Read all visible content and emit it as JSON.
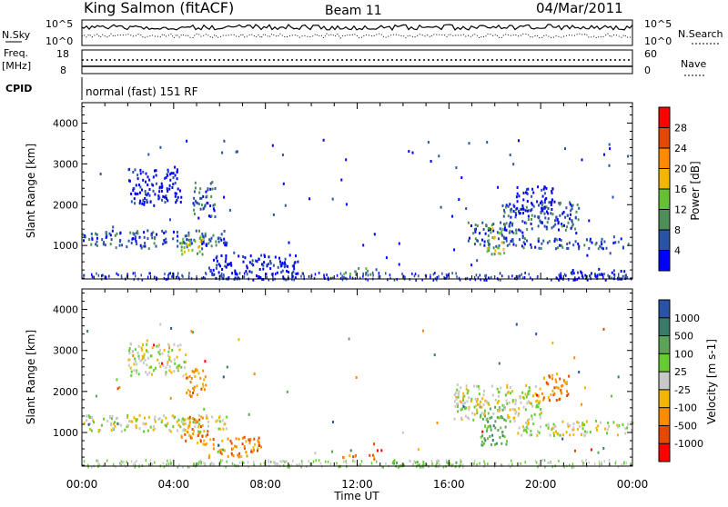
{
  "header": {
    "station": "King Salmon (fitACF)",
    "beam": "Beam 11",
    "date": "04/Mar/2011"
  },
  "top_panels": {
    "nsky_label": "N.Sky",
    "nsearch_label": "N.Search",
    "nsky_ticks": [
      "10^5",
      "10^0"
    ],
    "nsearch_ticks": [
      "10^5",
      "10^0"
    ],
    "freq_label_1": "Freq.",
    "freq_label_2": "[MHz]",
    "freq_ticks": [
      "18",
      "8"
    ],
    "nave_label": "Nave",
    "nave_ticks": [
      "60",
      "0"
    ],
    "cpid_label": "CPID",
    "cpid_text": "normal (fast) 151 RF"
  },
  "chart_data": [
    {
      "type": "heatmap",
      "name": "power",
      "ylabel": "Slant Range [km]",
      "xlabel": "",
      "y_ticks": [
        "4000",
        "3000",
        "2000",
        "1000"
      ],
      "x_ticks": [
        "00:00",
        "04:00",
        "08:00",
        "12:00",
        "16:00",
        "20:00",
        "00:00"
      ],
      "xlim": [
        0,
        24
      ],
      "ylim": [
        180,
        4500
      ],
      "colorbar_label": "Power [dB]",
      "colorbar_ticks": [
        "28",
        "24",
        "20",
        "16",
        "12",
        "8",
        "4"
      ],
      "colors": [
        "#ff0000",
        "#e34a00",
        "#ff8c00",
        "#f2b500",
        "#66c033",
        "#4e8f59",
        "#2a53a5",
        "#0000ff"
      ],
      "bands": [
        {
          "t": [
            1.0,
            6.3
          ],
          "r": [
            950,
            1400
          ],
          "level": 6
        },
        {
          "t": [
            0.0,
            1.3
          ],
          "r": [
            1000,
            1350
          ],
          "level": 6
        },
        {
          "t": [
            4.3,
            5.3
          ],
          "r": [
            800,
            1250
          ],
          "level": 4
        },
        {
          "t": [
            2.0,
            4.3
          ],
          "r": [
            2000,
            2900
          ],
          "level": 7
        },
        {
          "t": [
            4.8,
            5.8
          ],
          "r": [
            1700,
            2600
          ],
          "level": 6
        },
        {
          "t": [
            5.5,
            9.5
          ],
          "r": [
            180,
            800
          ],
          "level": 7
        },
        {
          "t": [
            11.3,
            12.8
          ],
          "r": [
            300,
            470
          ],
          "level": 5
        },
        {
          "t": [
            16.8,
            19.2
          ],
          "r": [
            1000,
            1600
          ],
          "level": 6
        },
        {
          "t": [
            17.6,
            18.4
          ],
          "r": [
            800,
            1450
          ],
          "level": 4
        },
        {
          "t": [
            18.3,
            21.7
          ],
          "r": [
            1400,
            2100
          ],
          "level": 6
        },
        {
          "t": [
            19.0,
            23.8
          ],
          "r": [
            950,
            1200
          ],
          "level": 6
        },
        {
          "t": [
            18.8,
            20.5
          ],
          "r": [
            1800,
            2500
          ],
          "level": 7
        },
        {
          "t": [
            20.5,
            23.8
          ],
          "r": [
            180,
            450
          ],
          "level": 7
        }
      ]
    },
    {
      "type": "heatmap",
      "name": "velocity",
      "ylabel": "Slant Range [km]",
      "xlabel": "Time UT",
      "y_ticks": [
        "4000",
        "3000",
        "2000",
        "1000"
      ],
      "x_ticks": [
        "00:00",
        "04:00",
        "08:00",
        "12:00",
        "16:00",
        "20:00",
        "00:00"
      ],
      "xlim": [
        0,
        24
      ],
      "ylim": [
        180,
        4500
      ],
      "colorbar_label": "Velocity [m s-1]",
      "colorbar_ticks": [
        "1000",
        "500",
        "100",
        "25",
        "-25",
        "-100",
        "-500",
        "-1000"
      ],
      "colors": [
        "#2a53a5",
        "#3a7a6a",
        "#5aa35a",
        "#66cc33",
        "#c8c8c8",
        "#f2b500",
        "#ff8c00",
        "#e34a00",
        "#ff0000"
      ],
      "bands": [
        {
          "t": [
            0.0,
            6.3
          ],
          "r": [
            1050,
            1450
          ],
          "level": 4
        },
        {
          "t": [
            4.3,
            5.5
          ],
          "r": [
            700,
            1400
          ],
          "level": 6
        },
        {
          "t": [
            2.0,
            4.5
          ],
          "r": [
            2400,
            3200
          ],
          "level": 4
        },
        {
          "t": [
            4.5,
            5.4
          ],
          "r": [
            1900,
            2600
          ],
          "level": 6
        },
        {
          "t": [
            5.5,
            7.8
          ],
          "r": [
            400,
            900
          ],
          "level": 6
        },
        {
          "t": [
            11.3,
            12.8
          ],
          "r": [
            350,
            480
          ],
          "level": 6
        },
        {
          "t": [
            13.5,
            16.5
          ],
          "r": [
            180,
            350
          ],
          "level": 3
        },
        {
          "t": [
            17.3,
            18.5
          ],
          "r": [
            700,
            1700
          ],
          "level": 2
        },
        {
          "t": [
            16.2,
            20.0
          ],
          "r": [
            1300,
            2200
          ],
          "level": 4
        },
        {
          "t": [
            19.0,
            24.0
          ],
          "r": [
            950,
            1300
          ],
          "level": 4
        },
        {
          "t": [
            20.0,
            21.2
          ],
          "r": [
            1800,
            2500
          ],
          "level": 6
        }
      ]
    }
  ]
}
